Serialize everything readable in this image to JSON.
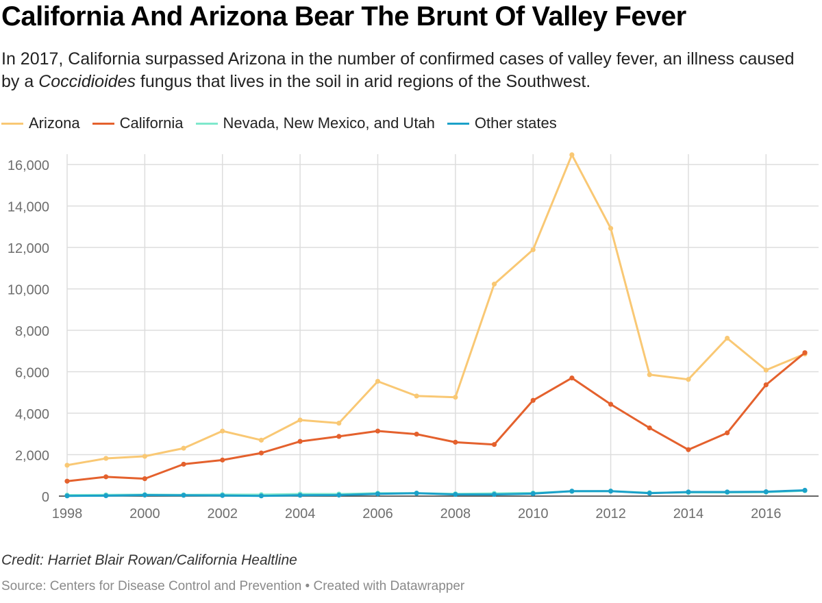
{
  "title": "California And Arizona Bear The Brunt Of Valley Fever",
  "subtitle": {
    "part1": "In 2017, California surpassed Arizona in the number of confirmed cases of valley fever, an illness caused by a ",
    "italic": "Coccidioides",
    "part2": " fungus that lives in the soil in arid regions of the Southwest."
  },
  "credit": "Credit: Harriet Blair Rowan/California Healtline",
  "source": {
    "text": "Source: Centers for Disease Control and Prevention",
    "separator": " • ",
    "created": "Created with Datawrapper"
  },
  "chart_data": {
    "type": "line",
    "title": "California And Arizona Bear The Brunt Of Valley Fever",
    "xlabel": "",
    "ylabel": "",
    "x": [
      1998,
      1999,
      2000,
      2001,
      2002,
      2003,
      2004,
      2005,
      2006,
      2007,
      2008,
      2009,
      2010,
      2011,
      2012,
      2013,
      2014,
      2015,
      2016,
      2017
    ],
    "xticks": [
      "1998",
      "2000",
      "2002",
      "2004",
      "2006",
      "2008",
      "2010",
      "2012",
      "2014",
      "2016"
    ],
    "yticks": [
      "0",
      "2,000",
      "4,000",
      "6,000",
      "8,000",
      "10,000",
      "12,000",
      "14,000",
      "16,000"
    ],
    "ytick_values": [
      0,
      2000,
      4000,
      6000,
      8000,
      10000,
      12000,
      14000,
      16000
    ],
    "xlim": [
      1998,
      2017
    ],
    "ylim": [
      0,
      16500
    ],
    "grid": true,
    "legend_position": "top-left",
    "series": [
      {
        "name": "Arizona",
        "color": "#f9c874",
        "values": [
          1490,
          1820,
          1920,
          2310,
          3140,
          2700,
          3670,
          3520,
          5540,
          4830,
          4770,
          10230,
          11890,
          16470,
          12920,
          5860,
          5630,
          7620,
          6080,
          6860
        ]
      },
      {
        "name": "California",
        "color": "#e4612d",
        "values": [
          720,
          930,
          840,
          1540,
          1740,
          2080,
          2640,
          2880,
          3140,
          2990,
          2600,
          2490,
          4620,
          5700,
          4430,
          3290,
          2240,
          3050,
          5370,
          6920
        ]
      },
      {
        "name": "Nevada, New Mexico, and Utah",
        "color": "#7fe8cc",
        "values": [
          50,
          60,
          70,
          60,
          70,
          70,
          100,
          100,
          140,
          140,
          110,
          130,
          150,
          230,
          240,
          160,
          180,
          180,
          190,
          260
        ]
      },
      {
        "name": "Other states",
        "color": "#1ba1c9",
        "values": [
          10,
          20,
          50,
          40,
          30,
          10,
          40,
          50,
          110,
          140,
          80,
          80,
          120,
          240,
          240,
          140,
          200,
          200,
          210,
          280
        ]
      }
    ]
  }
}
